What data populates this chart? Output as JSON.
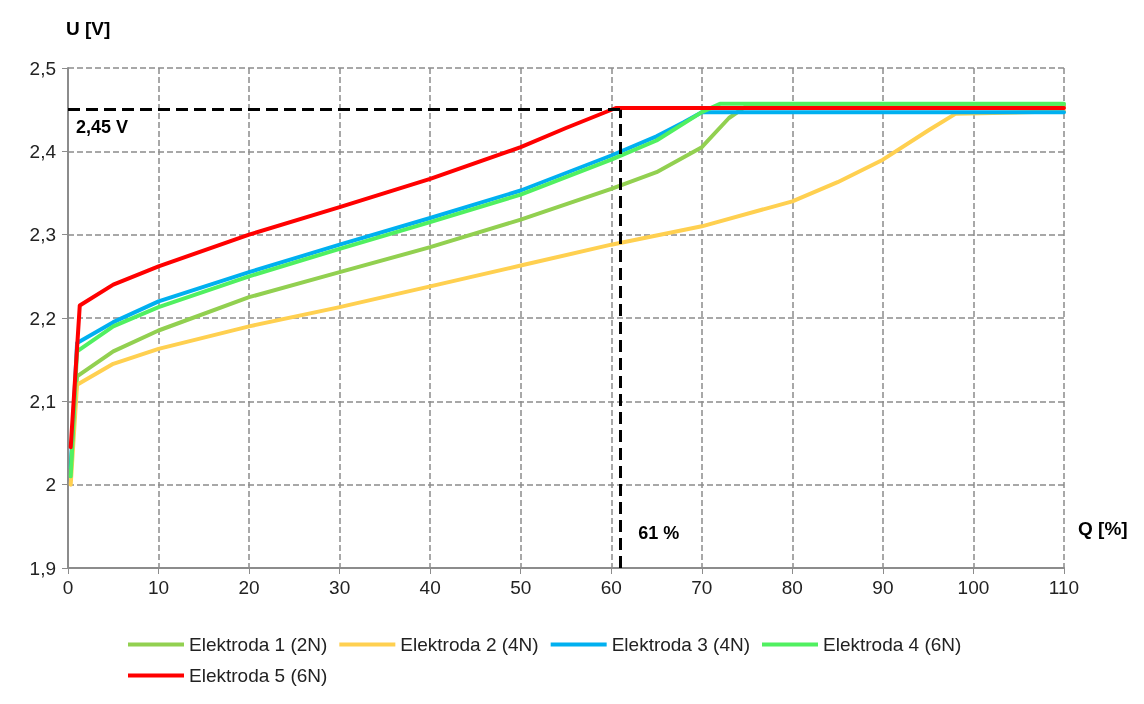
{
  "chart_data": {
    "type": "line",
    "xlabel": "Q [%]",
    "ylabel": "U [V]",
    "xlim": [
      0,
      110
    ],
    "xticks": [
      0,
      10,
      20,
      30,
      40,
      50,
      60,
      70,
      80,
      90,
      100,
      110
    ],
    "ylim": [
      1.9,
      2.5
    ],
    "yticks": [
      {
        "value": 1.9,
        "label": "1,9"
      },
      {
        "value": 2,
        "label": "2"
      },
      {
        "value": 2.1,
        "label": "2,1"
      },
      {
        "value": 2.2,
        "label": "2,2"
      },
      {
        "value": 2.3,
        "label": "2,3"
      },
      {
        "value": 2.4,
        "label": "2,4"
      },
      {
        "value": 2.5,
        "label": "2,5"
      }
    ],
    "grid": true,
    "legend": "bottom",
    "marker": "none",
    "line_style": "solid",
    "series": [
      {
        "name": "Elektroda 1 (2N)",
        "color": "#92d050",
        "x": [
          0.3,
          1,
          5,
          10,
          20,
          30,
          40,
          50,
          60,
          65,
          70,
          73,
          75,
          110
        ],
        "values": [
          2.02,
          2.13,
          2.16,
          2.185,
          2.225,
          2.255,
          2.285,
          2.318,
          2.355,
          2.375,
          2.405,
          2.44,
          2.455,
          2.455
        ]
      },
      {
        "name": "Elektroda 2 (4N)",
        "color": "#ffd050",
        "x": [
          0.3,
          1,
          5,
          10,
          20,
          30,
          40,
          50,
          60,
          70,
          80,
          85,
          90,
          95,
          98,
          110
        ],
        "values": [
          2.0,
          2.12,
          2.145,
          2.163,
          2.19,
          2.213,
          2.238,
          2.263,
          2.288,
          2.31,
          2.34,
          2.363,
          2.39,
          2.425,
          2.445,
          2.448
        ]
      },
      {
        "name": "Elektroda 3 (4N)",
        "color": "#00b0f0",
        "x": [
          0.3,
          1,
          5,
          10,
          20,
          30,
          40,
          50,
          60,
          65,
          68,
          70,
          110
        ],
        "values": [
          2.02,
          2.17,
          2.195,
          2.22,
          2.255,
          2.288,
          2.32,
          2.353,
          2.395,
          2.418,
          2.435,
          2.447,
          2.447
        ]
      },
      {
        "name": "Elektroda 4 (6N)",
        "color": "#50f060",
        "x": [
          0.3,
          1,
          5,
          10,
          20,
          30,
          40,
          50,
          60,
          65,
          70,
          72,
          110
        ],
        "values": [
          2.01,
          2.16,
          2.19,
          2.213,
          2.25,
          2.283,
          2.315,
          2.348,
          2.39,
          2.413,
          2.447,
          2.457,
          2.457
        ]
      },
      {
        "name": "Elektroda 5 (6N)",
        "color": "#ff0000",
        "x": [
          0.3,
          1.3,
          5,
          10,
          20,
          30,
          40,
          50,
          55,
          60.5,
          110
        ],
        "values": [
          2.045,
          2.215,
          2.24,
          2.262,
          2.3,
          2.333,
          2.367,
          2.405,
          2.428,
          2.452,
          2.452
        ]
      }
    ],
    "ref_lines": [
      {
        "axis": "y",
        "value": 2.45,
        "label": "2,45 V",
        "color": "#000000",
        "line_style": "dashed"
      },
      {
        "axis": "x",
        "value": 61,
        "label": "61 %",
        "color": "#000000",
        "line_style": "dashed"
      }
    ]
  }
}
